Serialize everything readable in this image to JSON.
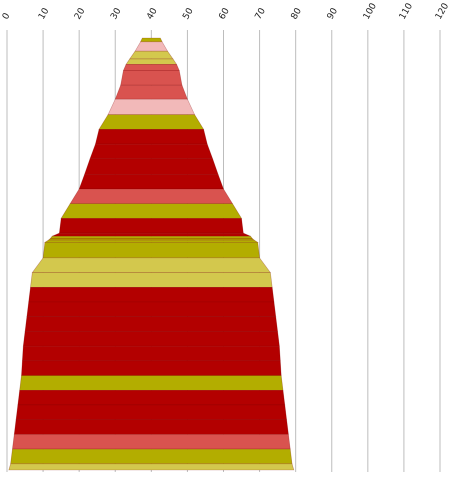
{
  "chart_data": {
    "type": "bar",
    "orientation": "horizontal-centered-funnel",
    "title": "",
    "xlabel": "",
    "ylabel": "",
    "xlim": [
      0,
      120
    ],
    "x_ticks": [
      "0",
      "10",
      "20",
      "30",
      "40",
      "50",
      "60",
      "70",
      "80",
      "90",
      "100",
      "110",
      "120"
    ],
    "x_gridlines": true,
    "center_value": 40,
    "colors": {
      "dark_red": "#b30000",
      "red": "#d9534f",
      "pink": "#f2b9b9",
      "olive": "#b3ad00",
      "light_olive": "#d3c84d"
    },
    "segments": [
      {
        "top": 5,
        "bottom": 6,
        "color": "olive"
      },
      {
        "top": 6,
        "bottom": 9,
        "color": "pink"
      },
      {
        "top": 9,
        "bottom": 12,
        "color": "light_olive"
      },
      {
        "top": 12,
        "bottom": 14,
        "color": "light_olive"
      },
      {
        "top": 14,
        "bottom": 15.5,
        "color": "red"
      },
      {
        "top": 15.5,
        "bottom": 17,
        "color": "red"
      },
      {
        "top": 17,
        "bottom": 20,
        "color": "red"
      },
      {
        "top": 20,
        "bottom": 24,
        "color": "pink"
      },
      {
        "top": 24,
        "bottom": 29,
        "color": "olive"
      },
      {
        "top": 29,
        "bottom": 31,
        "color": "dark_red"
      },
      {
        "top": 31,
        "bottom": 34,
        "color": "dark_red"
      },
      {
        "top": 34,
        "bottom": 37,
        "color": "dark_red"
      },
      {
        "top": 37,
        "bottom": 40,
        "color": "dark_red"
      },
      {
        "top": 40,
        "bottom": 45,
        "color": "red"
      },
      {
        "top": 45,
        "bottom": 50,
        "color": "olive"
      },
      {
        "top": 50,
        "bottom": 51,
        "color": "dark_red"
      },
      {
        "top": 51,
        "bottom": 55,
        "color": "dark_red"
      },
      {
        "top": 55,
        "bottom": 56,
        "color": "olive"
      },
      {
        "top": 56,
        "bottom": 57,
        "color": "olive"
      },
      {
        "top": 57,
        "bottom": 59,
        "color": "olive"
      },
      {
        "top": 59,
        "bottom": 60,
        "color": "olive"
      },
      {
        "top": 60,
        "bottom": 66,
        "color": "light_olive"
      },
      {
        "top": 66,
        "bottom": 67,
        "color": "light_olive"
      },
      {
        "top": 67,
        "bottom": 68,
        "color": "dark_red"
      },
      {
        "top": 68,
        "bottom": 69,
        "color": "dark_red"
      },
      {
        "top": 69,
        "bottom": 70,
        "color": "dark_red"
      },
      {
        "top": 70,
        "bottom": 71,
        "color": "dark_red"
      },
      {
        "top": 71,
        "bottom": 71.5,
        "color": "dark_red"
      },
      {
        "top": 71.5,
        "bottom": 72,
        "color": "dark_red"
      },
      {
        "top": 72,
        "bottom": 73,
        "color": "olive"
      },
      {
        "top": 73,
        "bottom": 74,
        "color": "dark_red"
      },
      {
        "top": 74,
        "bottom": 75,
        "color": "dark_red"
      },
      {
        "top": 75,
        "bottom": 76,
        "color": "dark_red"
      },
      {
        "top": 76,
        "bottom": 77,
        "color": "red"
      },
      {
        "top": 77,
        "bottom": 78,
        "color": "olive"
      },
      {
        "top": 78,
        "bottom": 79,
        "color": "light_olive"
      }
    ]
  }
}
